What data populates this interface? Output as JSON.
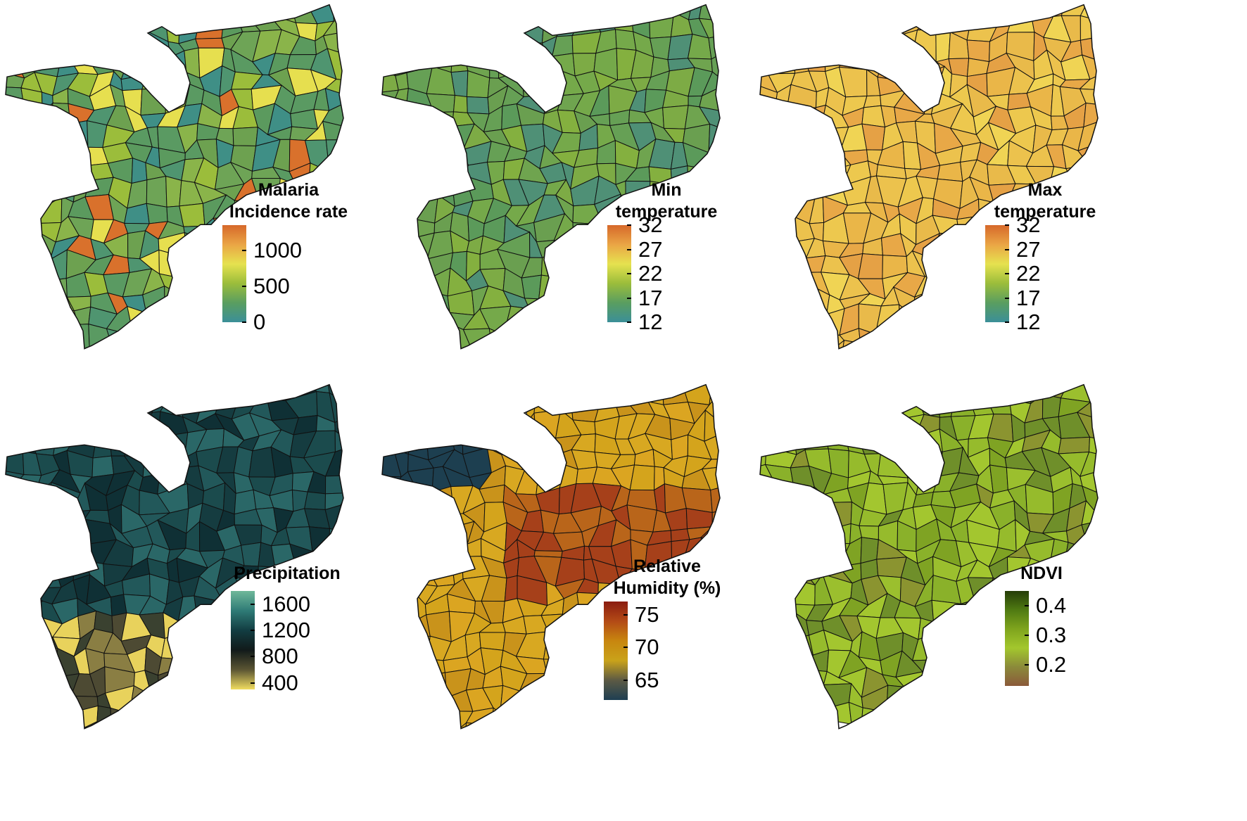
{
  "panels": [
    {
      "title_lines": [
        "Malaria",
        "Incidence rate"
      ],
      "ticks": [
        "1000",
        "500",
        "0"
      ],
      "tick_values": [
        1000,
        500,
        0
      ],
      "range": [
        0,
        1350
      ],
      "gradient": [
        "#d6682a",
        "#eaa545",
        "#e6e24f",
        "#9bbd3b",
        "#5a9e60",
        "#3b8f98"
      ],
      "fills": [
        "#5b9a5e",
        "#6da150",
        "#8ab44a",
        "#4f9570",
        "#9bbd3b",
        "#e6df4f",
        "#5a9a62",
        "#6ea456",
        "#3f8f86",
        "#d9712c"
      ]
    },
    {
      "title_lines": [
        "Min",
        "temperature"
      ],
      "ticks": [
        "32",
        "27",
        "22",
        "17",
        "12"
      ],
      "tick_values": [
        32,
        27,
        22,
        17,
        12
      ],
      "range": [
        12,
        32
      ],
      "gradient": [
        "#d6682a",
        "#eaa545",
        "#e6e24f",
        "#9bbd3b",
        "#5a9e60",
        "#3b8f98"
      ],
      "fills": [
        "#6a9f50",
        "#75a94a",
        "#7dab45",
        "#66a055",
        "#5b9a5a",
        "#84b03f",
        "#6fa44f",
        "#4f9076"
      ]
    },
    {
      "title_lines": [
        "Max",
        "temperature"
      ],
      "ticks": [
        "32",
        "27",
        "22",
        "17",
        "12"
      ],
      "tick_values": [
        32,
        27,
        22,
        17,
        12
      ],
      "range": [
        12,
        32
      ],
      "gradient": [
        "#d6682a",
        "#eaa545",
        "#e6e24f",
        "#9bbd3b",
        "#5a9e60",
        "#3b8f98"
      ],
      "fills": [
        "#edc84e",
        "#eab648",
        "#e8a847",
        "#f0d454",
        "#e9ba4a",
        "#e5a145",
        "#ecc24d"
      ]
    },
    {
      "title_lines": [
        "Precipitation"
      ],
      "ticks": [
        "1600",
        "1200",
        "800",
        "400"
      ],
      "tick_values": [
        1600,
        1200,
        800,
        400
      ],
      "range": [
        300,
        1800
      ],
      "gradient": [
        "#6fb89a",
        "#2f7b76",
        "#123d42",
        "#111a1a",
        "#5b5533",
        "#f0dc60"
      ],
      "fills": [
        "#1b4b4d",
        "#153c40",
        "#22585a",
        "#2a6767",
        "#0f3035",
        "#3a4130",
        "#8a7e43",
        "#e8d25c",
        "#4d4a33"
      ]
    },
    {
      "title_lines": [
        "Relative",
        "Humidity (%)"
      ],
      "ticks": [
        "75",
        "70",
        "65"
      ],
      "tick_values": [
        75,
        70,
        65
      ],
      "range": [
        62,
        77
      ],
      "gradient": [
        "#8b1c10",
        "#b34a16",
        "#c8860f",
        "#c9a21a",
        "#5c5a44",
        "#1e3f52"
      ],
      "fills": [
        "#d4a41c",
        "#c9931b",
        "#b9651a",
        "#a6401a",
        "#d8a821",
        "#87802f",
        "#1d3f50",
        "#b04419",
        "#dba521"
      ]
    },
    {
      "title_lines": [
        "NDVI"
      ],
      "ticks": [
        "0.4",
        "0.3",
        "0.2"
      ],
      "tick_values": [
        0.4,
        0.3,
        0.2
      ],
      "range": [
        0.13,
        0.45
      ],
      "gradient": [
        "#253d08",
        "#4f7a12",
        "#7fa41d",
        "#a3c72d",
        "#8b8a3a",
        "#8b5a3a"
      ],
      "fills": [
        "#8ab12a",
        "#96bb2c",
        "#7fa323",
        "#a3c62f",
        "#6f8f2a",
        "#8b9430",
        "#9bbf2e"
      ]
    }
  ]
}
